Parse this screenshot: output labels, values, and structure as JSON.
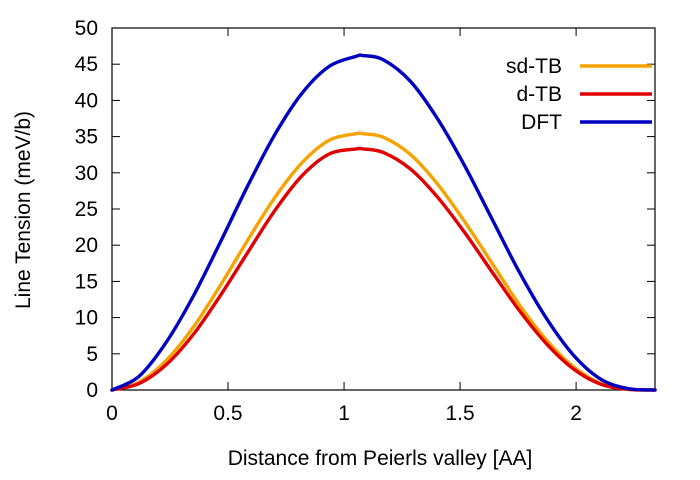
{
  "chart_data": {
    "type": "line",
    "xlabel": "Distance from Peierls valley [AA]",
    "ylabel": "Line Tension (meV/b)",
    "xlim": [
      0,
      2.34
    ],
    "ylim": [
      0,
      50
    ],
    "x_ticks": [
      "0",
      "0.5",
      "1",
      "1.5",
      "2"
    ],
    "y_ticks": [
      "0",
      "5",
      "10",
      "15",
      "20",
      "25",
      "30",
      "35",
      "40",
      "45",
      "50"
    ],
    "grid": false,
    "legend_placement": "top-right",
    "series": [
      {
        "name": "sd-TB",
        "color": "#f5a300",
        "x": [
          0,
          0.117,
          0.234,
          0.351,
          0.468,
          0.585,
          0.702,
          0.819,
          0.936,
          1.053,
          1.08,
          1.17,
          1.287,
          1.404,
          1.521,
          1.638,
          1.755,
          1.872,
          1.989,
          2.106,
          2.223,
          2.34
        ],
        "y": [
          0,
          1.1,
          4.1,
          8.7,
          14.5,
          20.7,
          26.6,
          31.4,
          34.5,
          35.4,
          35.4,
          34.9,
          32.5,
          28.4,
          23.2,
          17.5,
          11.8,
          6.9,
          3.2,
          0.9,
          0.1,
          0
        ]
      },
      {
        "name": "d-TB",
        "color": "#e00000",
        "x": [
          0,
          0.117,
          0.234,
          0.351,
          0.468,
          0.585,
          0.702,
          0.819,
          0.936,
          1.053,
          1.08,
          1.17,
          1.287,
          1.404,
          1.521,
          1.638,
          1.755,
          1.872,
          1.989,
          2.106,
          2.223,
          2.34
        ],
        "y": [
          0,
          0.9,
          3.5,
          7.7,
          13.1,
          19.0,
          24.8,
          29.6,
          32.6,
          33.3,
          33.3,
          32.8,
          30.5,
          26.6,
          21.7,
          16.3,
          11.0,
          6.4,
          2.9,
          0.8,
          0.1,
          0
        ]
      },
      {
        "name": "DFT",
        "color": "#0000c0",
        "x": [
          0,
          0.117,
          0.234,
          0.351,
          0.468,
          0.585,
          0.702,
          0.819,
          0.936,
          1.053,
          1.08,
          1.17,
          1.287,
          1.404,
          1.521,
          1.638,
          1.755,
          1.872,
          1.989,
          2.106,
          2.223,
          2.34
        ],
        "y": [
          0,
          1.9,
          6.6,
          13.0,
          20.5,
          28.2,
          35.3,
          41.0,
          44.7,
          46.1,
          46.2,
          45.6,
          42.6,
          37.4,
          30.9,
          23.6,
          16.3,
          9.9,
          4.8,
          1.5,
          0.2,
          0
        ]
      }
    ]
  }
}
